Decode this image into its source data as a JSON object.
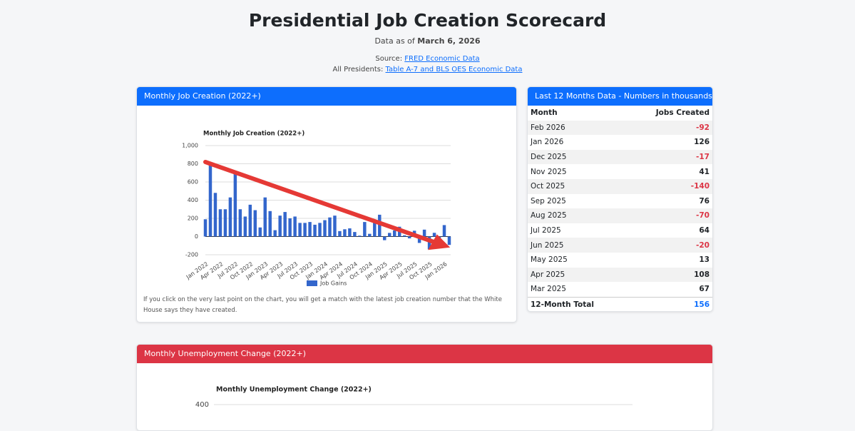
{
  "header": {
    "title": "Presidential Job Creation Scorecard",
    "as_of_label": "Data as of",
    "as_of_date": "March 6, 2026",
    "source_label": "Source:",
    "source_link": "FRED Economic Data",
    "all_label": "All Presidents:",
    "all_link": "Table A-7 and BLS OES Economic Data"
  },
  "job_card": {
    "header": "Monthly Job Creation (2022+)",
    "note": "If you click on the very last point on the chart, you will get a match with the latest job creation number that the White House says they have created."
  },
  "table_card": {
    "header": "Last 12 Months Data - Numbers in thousands",
    "columns": [
      "Month",
      "Jobs Created"
    ],
    "rows": [
      [
        "Feb 2026",
        -92
      ],
      [
        "Jan 2026",
        126
      ],
      [
        "Dec 2025",
        -17
      ],
      [
        "Nov 2025",
        41
      ],
      [
        "Oct 2025",
        -140
      ],
      [
        "Sep 2025",
        76
      ],
      [
        "Aug 2025",
        -70
      ],
      [
        "Jul 2025",
        64
      ],
      [
        "Jun 2025",
        -20
      ],
      [
        "May 2025",
        13
      ],
      [
        "Apr 2025",
        108
      ],
      [
        "Mar 2025",
        67
      ]
    ],
    "total": [
      "12-Month Total",
      156
    ]
  },
  "unemployment_card": {
    "header": "Monthly Unemployment Change (2022+)"
  },
  "chart_data": [
    {
      "type": "bar",
      "title": "Monthly Job Creation (2022+)",
      "categories": [
        "Jan 2022",
        null,
        null,
        "Apr 2022",
        null,
        null,
        "Jul 2022",
        null,
        null,
        "Oct 2022",
        null,
        null,
        "Jan 2023",
        null,
        null,
        "Apr 2023",
        null,
        null,
        "Jul 2023",
        null,
        null,
        "Oct 2023",
        null,
        null,
        "Jan 2024",
        null,
        null,
        "Apr 2024",
        null,
        null,
        "Jul 2024",
        null,
        null,
        "Oct 2024",
        null,
        null,
        "Jan 2025",
        null,
        null,
        "Apr 2025",
        null,
        null,
        "Jul 2025",
        null,
        null,
        "Oct 2025",
        null,
        null,
        "Jan 2026",
        null
      ],
      "series": [
        {
          "name": "Job Gains",
          "color": "#3366cc",
          "values": [
            190,
            790,
            480,
            300,
            300,
            430,
            690,
            300,
            220,
            350,
            290,
            100,
            430,
            280,
            70,
            230,
            270,
            200,
            220,
            150,
            150,
            160,
            130,
            150,
            180,
            210,
            230,
            60,
            80,
            90,
            50,
            10,
            160,
            30,
            150,
            240,
            -40,
            40,
            67,
            108,
            13,
            -20,
            64,
            -70,
            76,
            -140,
            41,
            -17,
            126,
            -92
          ]
        }
      ],
      "ylim": [
        -200,
        1000
      ],
      "yticks": [
        {
          "value": 1000,
          "label": "1,000"
        },
        800,
        600,
        400,
        200,
        0,
        -200
      ],
      "grid": true,
      "legend": "bottom"
    },
    {
      "type": "line",
      "title": "Monthly Unemployment Change (2022+)",
      "yticks": [
        400
      ],
      "grid": true
    }
  ]
}
